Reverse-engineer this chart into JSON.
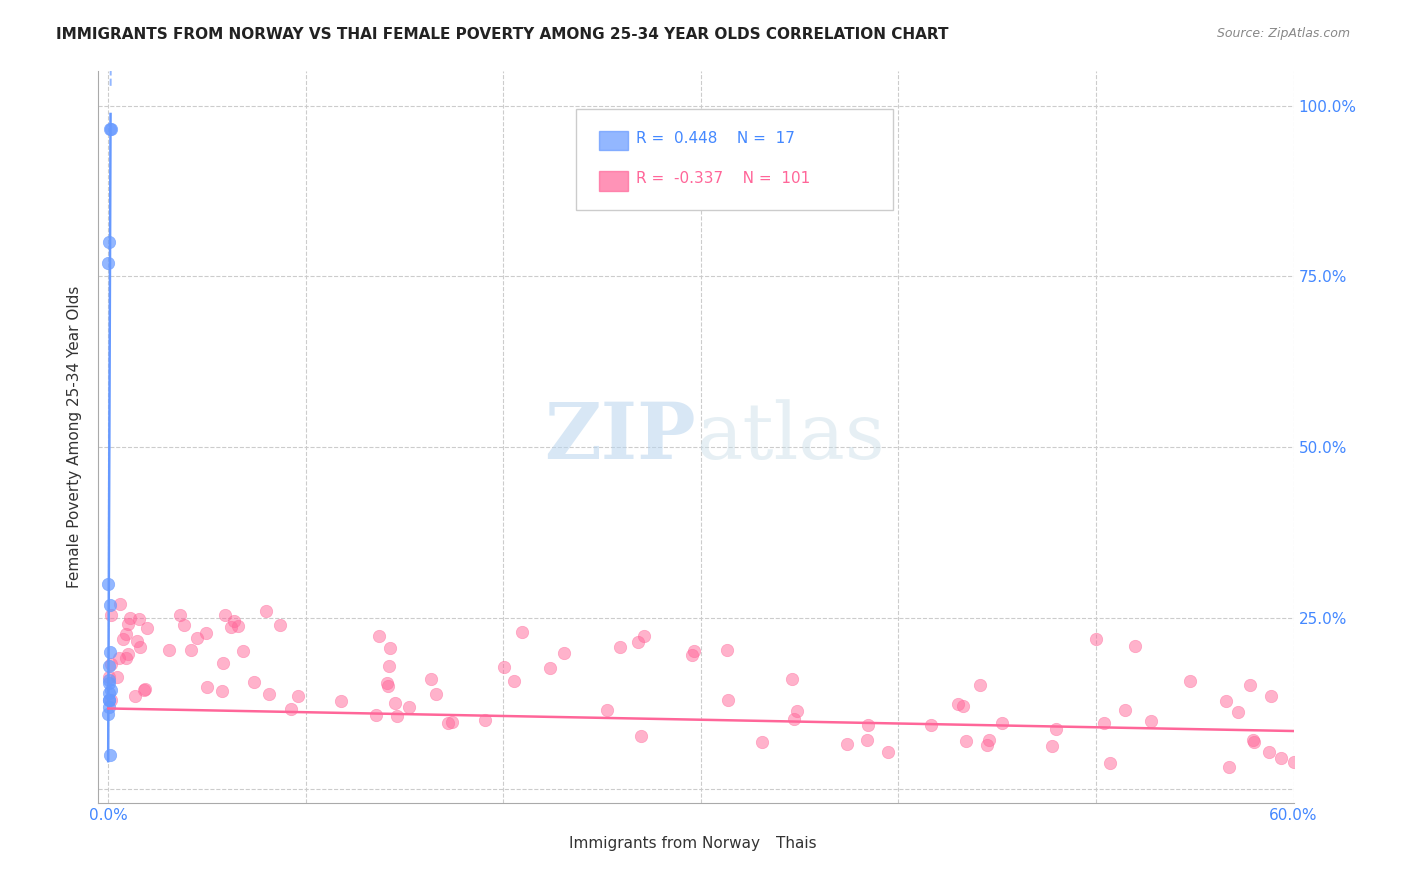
{
  "title": "IMMIGRANTS FROM NORWAY VS THAI FEMALE POVERTY AMONG 25-34 YEAR OLDS CORRELATION CHART",
  "source": "Source: ZipAtlas.com",
  "ylabel": "Female Poverty Among 25-34 Year Olds",
  "ytick_labels": [
    "",
    "25.0%",
    "50.0%",
    "75.0%",
    "100.0%"
  ],
  "legend_norway": "Immigrants from Norway",
  "legend_thais": "Thais",
  "r_norway": 0.448,
  "n_norway": 17,
  "r_thais": -0.337,
  "n_thais": 101,
  "color_norway": "#6699ff",
  "color_thais": "#ff6699",
  "watermark_zip": "ZIP",
  "watermark_atlas": "atlas",
  "norway_x": [
    0.0005,
    0.001,
    0.0012,
    0.0,
    0.0,
    0.001,
    0.0008,
    0.0003,
    0.0004,
    0.0002,
    0.0015,
    0.0006,
    0.0002,
    0.0003,
    0.0004,
    0.0001,
    0.0007
  ],
  "norway_y": [
    0.8,
    0.965,
    0.965,
    0.77,
    0.3,
    0.27,
    0.2,
    0.18,
    0.16,
    0.155,
    0.145,
    0.14,
    0.13,
    0.13,
    0.12,
    0.11,
    0.05
  ],
  "slope_norway": 790.0,
  "intercept_norway": 0.09,
  "slope_thais": -0.055,
  "intercept_thais": 0.118,
  "xlim": [
    -0.005,
    0.6
  ],
  "ylim": [
    -0.02,
    1.05
  ],
  "xtick_vals": [
    0.0,
    0.1,
    0.2,
    0.3,
    0.4,
    0.5,
    0.6
  ]
}
